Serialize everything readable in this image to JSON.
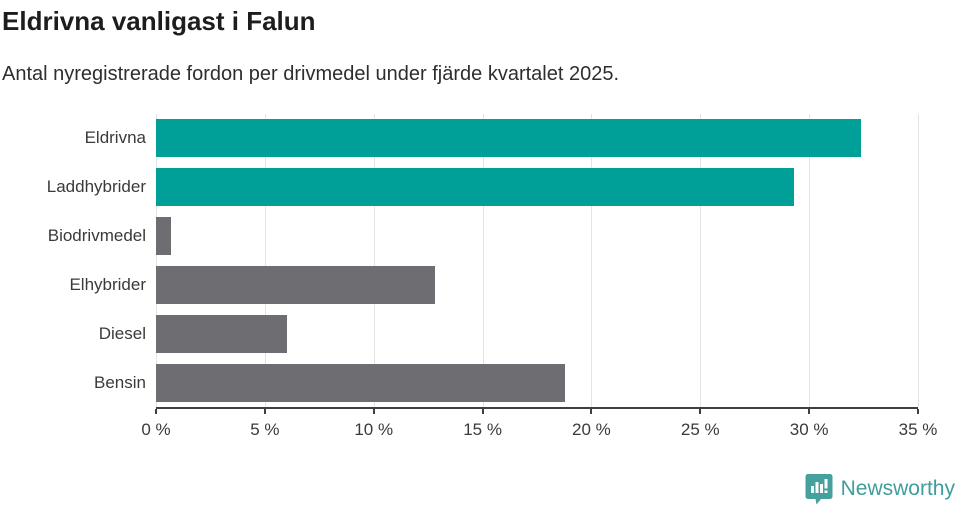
{
  "header": {
    "title": "Eldrivna vanligast i Falun",
    "subtitle": "Antal nyregistrerade fordon per drivmedel under fjärde kvartalet 2025."
  },
  "chart_data": {
    "type": "bar",
    "orientation": "horizontal",
    "categories": [
      "Eldrivna",
      "Laddhybrider",
      "Biodrivmedel",
      "Elhybrider",
      "Diesel",
      "Bensin"
    ],
    "values": [
      32.4,
      29.3,
      0.7,
      12.8,
      6.0,
      18.8
    ],
    "unit": "%",
    "bar_colors": [
      "#00a099",
      "#00a099",
      "#6d6d72",
      "#6d6d72",
      "#6d6d72",
      "#6d6d72"
    ],
    "xlim": [
      0,
      35
    ],
    "x_ticks": [
      "0 %",
      "5 %",
      "10 %",
      "15 %",
      "20 %",
      "25 %",
      "30 %",
      "35 %"
    ],
    "grid": true,
    "layout": {
      "accent_color": "#00a099",
      "neutral_color": "#6d6d72",
      "grid_color": "#e3e3e3",
      "axis_color": "#3f3f3f",
      "legend": "none"
    }
  },
  "footer": {
    "brand": "Newsworthy",
    "brand_color": "#3f9e9b",
    "logo_icon": "newsworthy-speech-bubble-barchart-icon"
  }
}
